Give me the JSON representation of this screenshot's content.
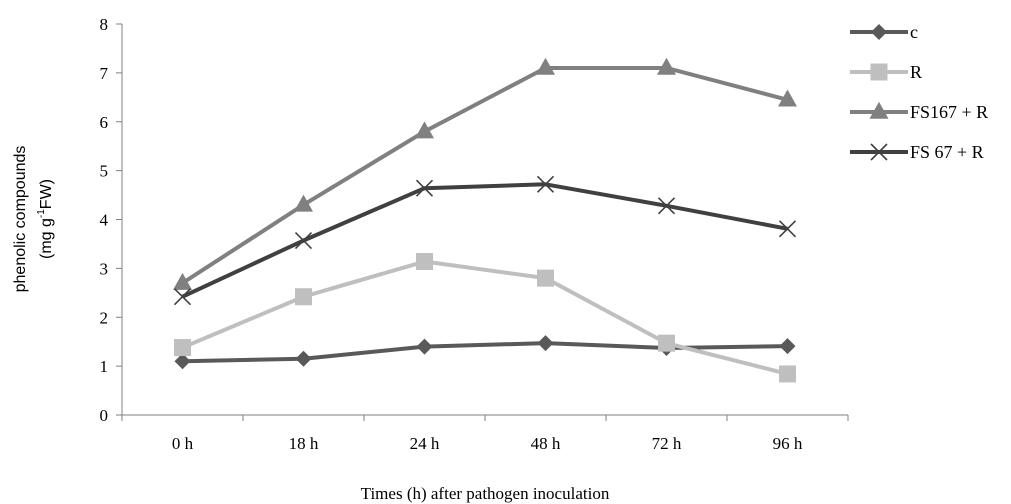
{
  "chart_data": {
    "type": "line",
    "title": "",
    "categories": [
      "0 h",
      "18 h",
      "24 h",
      "48 h",
      "72 h",
      "96 h"
    ],
    "xlabel": "Times (h) after pathogen inoculation",
    "ylabel_line1": "phenolic compounds",
    "ylabel_line2_pre": "(mg g",
    "ylabel_line2_sup": "-1",
    "ylabel_line2_post": "FW)",
    "ylim": [
      0,
      8
    ],
    "yticks": [
      "0",
      "1",
      "2",
      "3",
      "4",
      "5",
      "6",
      "7",
      "8"
    ],
    "grid": false,
    "legend_position": "right",
    "series": [
      {
        "name": "c",
        "marker": "diamond",
        "color": "#595959",
        "values": [
          1.1,
          1.15,
          1.4,
          1.47,
          1.37,
          1.41
        ]
      },
      {
        "name": "R",
        "marker": "square",
        "color": "#bfbfbf",
        "values": [
          1.38,
          2.42,
          3.14,
          2.8,
          1.47,
          0.84
        ]
      },
      {
        "name": "FS167 + R",
        "marker": "triangle",
        "color": "#808080",
        "values": [
          2.7,
          4.3,
          5.8,
          7.1,
          7.1,
          6.45
        ]
      },
      {
        "name": "FS 67 + R",
        "marker": "x",
        "color": "#404040",
        "values": [
          2.42,
          3.57,
          4.64,
          4.72,
          4.28,
          3.81
        ]
      }
    ]
  }
}
